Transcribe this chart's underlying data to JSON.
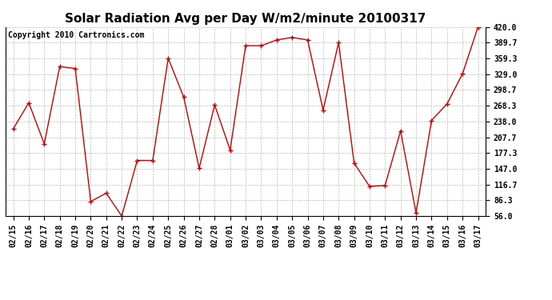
{
  "title": "Solar Radiation Avg per Day W/m2/minute 20100317",
  "copyright": "Copyright 2010 Cartronics.com",
  "labels": [
    "02/15",
    "02/16",
    "02/17",
    "02/18",
    "02/19",
    "02/20",
    "02/21",
    "02/22",
    "02/23",
    "02/24",
    "02/25",
    "02/26",
    "02/27",
    "02/28",
    "03/01",
    "03/02",
    "03/03",
    "03/04",
    "03/05",
    "03/06",
    "03/07",
    "03/08",
    "03/09",
    "03/10",
    "03/11",
    "03/12",
    "03/13",
    "03/14",
    "03/15",
    "03/16",
    "03/17"
  ],
  "values": [
    224,
    274,
    195,
    344,
    340,
    84,
    100,
    56,
    163,
    163,
    360,
    285,
    148,
    270,
    183,
    384,
    384,
    395,
    400,
    395,
    260,
    390,
    158,
    113,
    115,
    220,
    62,
    240,
    272,
    330,
    420
  ],
  "line_color": "#cc0000",
  "marker": "+",
  "marker_color": "#cc0000",
  "bg_color": "#ffffff",
  "grid_color": "#bbbbbb",
  "ylim_min": 56.0,
  "ylim_max": 420.0,
  "ytick_labels": [
    "420.0",
    "389.7",
    "359.3",
    "329.0",
    "298.7",
    "268.3",
    "238.0",
    "207.7",
    "177.3",
    "147.0",
    "116.7",
    "86.3",
    "56.0"
  ],
  "ytick_values": [
    420.0,
    389.7,
    359.3,
    329.0,
    298.7,
    268.3,
    238.0,
    207.7,
    177.3,
    147.0,
    116.7,
    86.3,
    56.0
  ],
  "title_fontsize": 11,
  "tick_fontsize": 7,
  "copyright_fontsize": 7
}
